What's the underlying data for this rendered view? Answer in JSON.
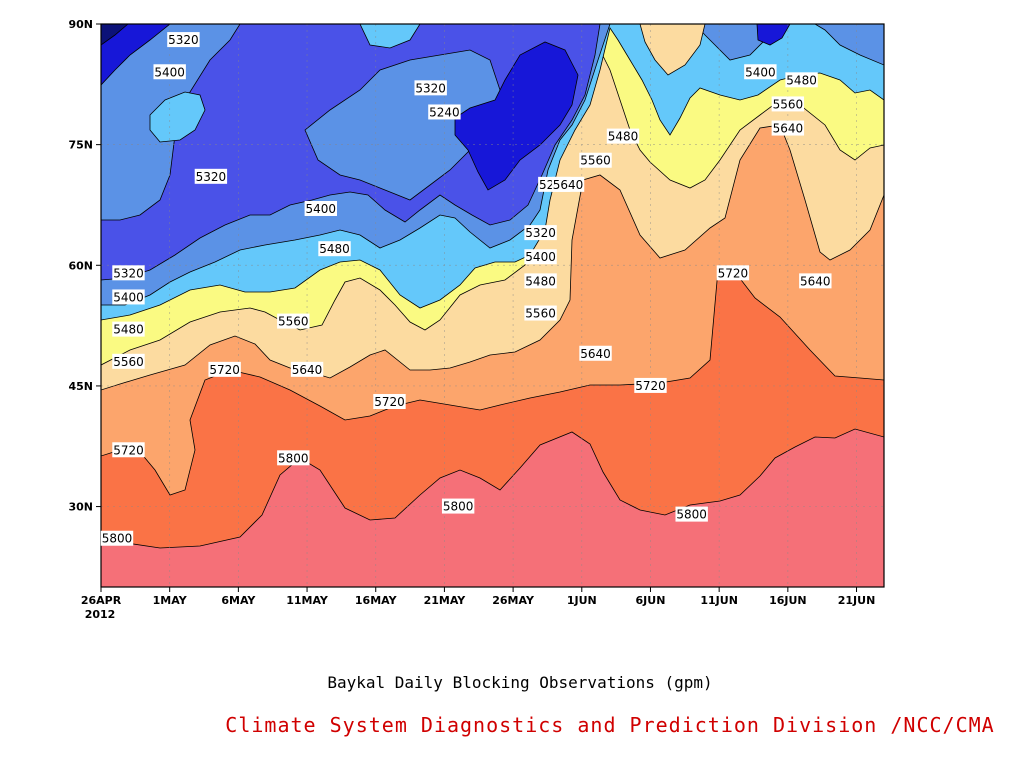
{
  "chart_data": {
    "type": "heatmap",
    "subtype": "filled contour (latitude-time section)",
    "title": "Baykal Daily Blocking Observations (gpm)",
    "credit": "Climate System Diagnostics and Prediction Division /NCC/CMA",
    "xlabel": "",
    "ylabel": "",
    "x_ticks": [
      "26APR",
      "1MAY",
      "6MAY",
      "11MAY",
      "16MAY",
      "21MAY",
      "26MAY",
      "1JUN",
      "6JUN",
      "11JUN",
      "16JUN",
      "21JUN"
    ],
    "x_year_label": "2012",
    "y_ticks": [
      "30N",
      "45N",
      "60N",
      "75N",
      "90N"
    ],
    "xlim": [
      "2012-04-26",
      "2012-06-22"
    ],
    "ylim": [
      20,
      90
    ],
    "grid": true,
    "contour_levels": [
      5160,
      5240,
      5320,
      5400,
      5480,
      5560,
      5640,
      5720,
      5800
    ],
    "colors": {
      "lt5160": "#0c1278",
      "5160-5240": "#1717d8",
      "5240-5320": "#4a52e8",
      "5320-5400": "#5b92e6",
      "5400-5480": "#64c8fa",
      "5480-5560": "#fafa82",
      "5560-5640": "#fcdba0",
      "5640-5720": "#fca56c",
      "5720-5800": "#fa7346",
      "ge5800": "#f57078"
    },
    "contour_labels": [
      {
        "value": "5320",
        "date": "2012-05-02",
        "lat": 88
      },
      {
        "value": "5400",
        "date": "2012-05-01",
        "lat": 84
      },
      {
        "value": "5320",
        "date": "2012-05-20",
        "lat": 82
      },
      {
        "value": "5240",
        "date": "2012-05-21",
        "lat": 79
      },
      {
        "value": "5320",
        "date": "2012-05-04",
        "lat": 71
      },
      {
        "value": "5400",
        "date": "2012-05-12",
        "lat": 67
      },
      {
        "value": "5240",
        "date": "2012-05-29",
        "lat": 70
      },
      {
        "value": "5400",
        "date": "2012-06-13",
        "lat": 84
      },
      {
        "value": "5480",
        "date": "2012-06-16",
        "lat": 83
      },
      {
        "value": "5560",
        "date": "2012-06-15",
        "lat": 80
      },
      {
        "value": "5640",
        "date": "2012-06-15",
        "lat": 77
      },
      {
        "value": "5480",
        "date": "2012-06-03",
        "lat": 76
      },
      {
        "value": "5560",
        "date": "2012-06-01",
        "lat": 73
      },
      {
        "value": "5640",
        "date": "2012-05-30",
        "lat": 70
      },
      {
        "value": "5320",
        "date": "2012-05-28",
        "lat": 64
      },
      {
        "value": "5400",
        "date": "2012-05-28",
        "lat": 61
      },
      {
        "value": "5480",
        "date": "2012-05-28",
        "lat": 58
      },
      {
        "value": "5560",
        "date": "2012-05-28",
        "lat": 54
      },
      {
        "value": "5480",
        "date": "2012-05-13",
        "lat": 62
      },
      {
        "value": "5320",
        "date": "2012-04-28",
        "lat": 59
      },
      {
        "value": "5400",
        "date": "2012-04-28",
        "lat": 56
      },
      {
        "value": "5480",
        "date": "2012-04-28",
        "lat": 52
      },
      {
        "value": "5560",
        "date": "2012-04-28",
        "lat": 48
      },
      {
        "value": "5560",
        "date": "2012-05-10",
        "lat": 53
      },
      {
        "value": "5640",
        "date": "2012-05-11",
        "lat": 47
      },
      {
        "value": "5640",
        "date": "2012-06-01",
        "lat": 49
      },
      {
        "value": "5720",
        "date": "2012-05-05",
        "lat": 47
      },
      {
        "value": "5720",
        "date": "2012-05-17",
        "lat": 43
      },
      {
        "value": "5720",
        "date": "2012-06-05",
        "lat": 45
      },
      {
        "value": "5720",
        "date": "2012-06-11",
        "lat": 59
      },
      {
        "value": "5640",
        "date": "2012-06-17",
        "lat": 58
      },
      {
        "value": "5720",
        "date": "2012-04-28",
        "lat": 37
      },
      {
        "value": "5800",
        "date": "2012-05-10",
        "lat": 36
      },
      {
        "value": "5800",
        "date": "2012-05-22",
        "lat": 30
      },
      {
        "value": "5800",
        "date": "2012-06-08",
        "lat": 29
      },
      {
        "value": "5800",
        "date": "2012-04-26",
        "lat": 26
      }
    ]
  }
}
